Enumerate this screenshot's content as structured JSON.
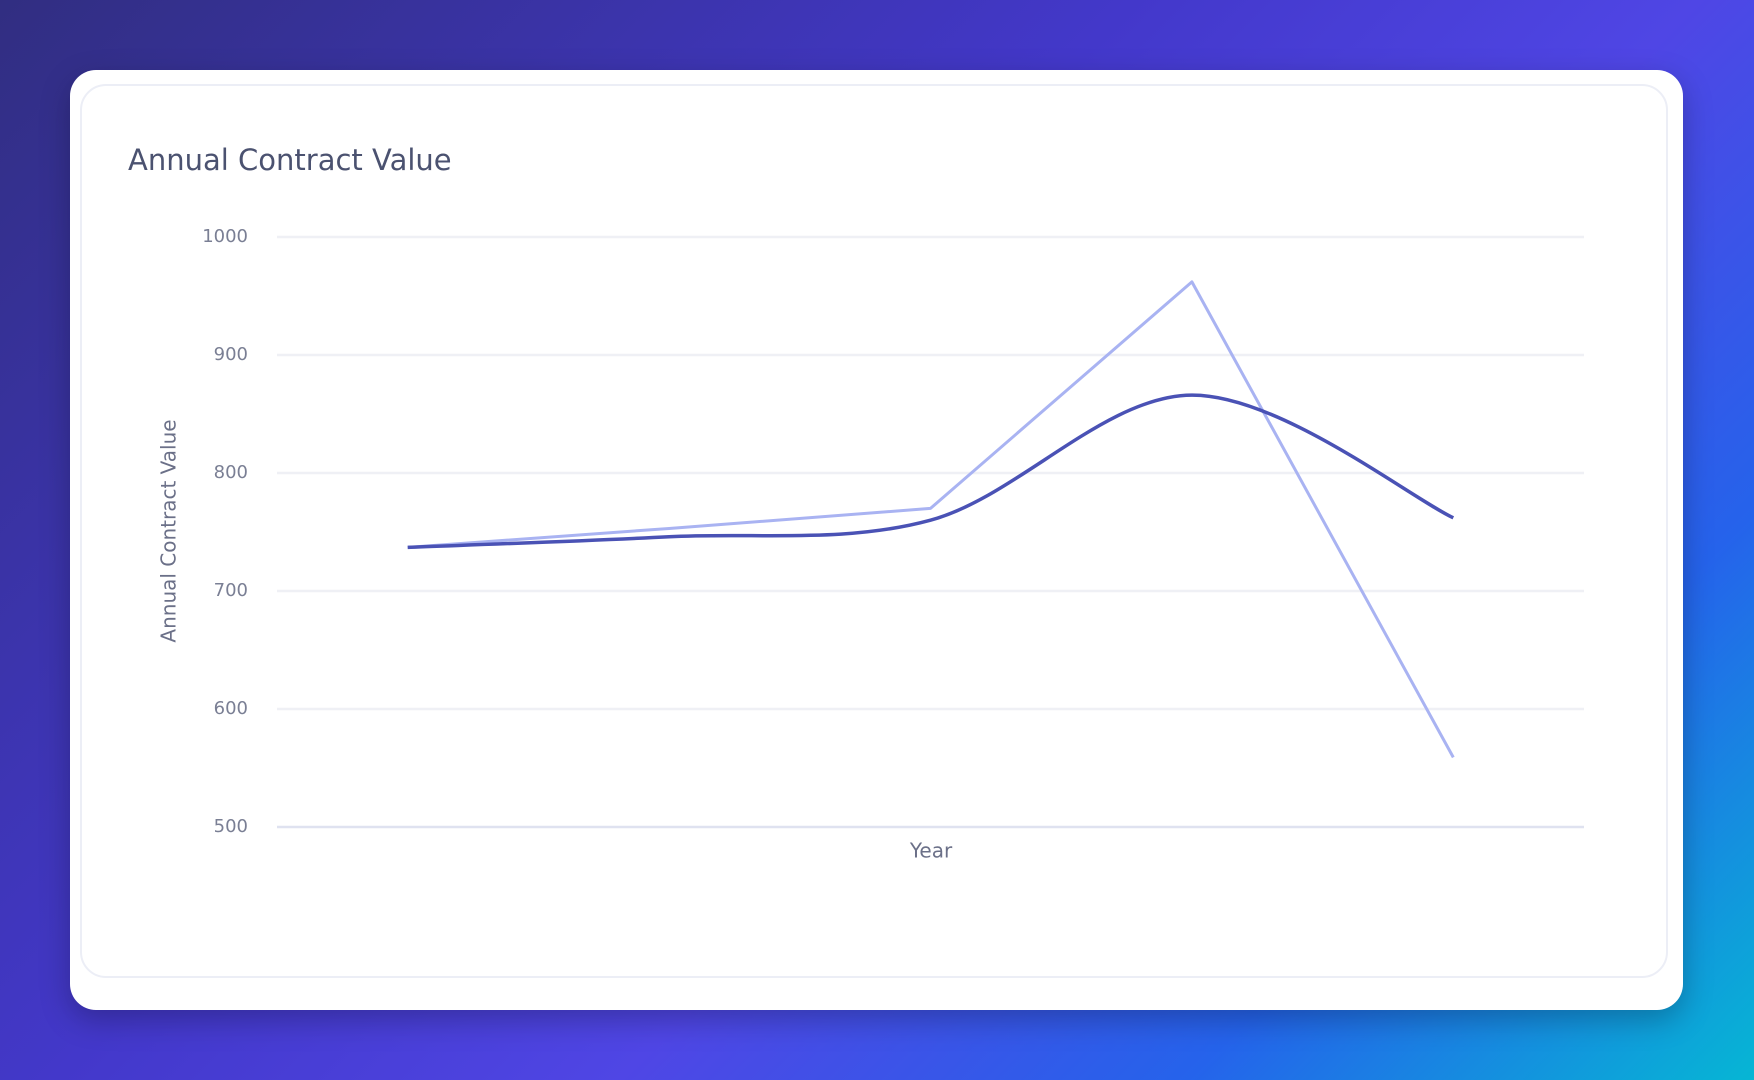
{
  "chart_data": {
    "type": "line",
    "title": "Annual Contract Value",
    "x_label": "Year",
    "y_label": "Annual Contract Value",
    "categories": [
      null,
      null,
      null,
      null,
      null
    ],
    "series": [
      {
        "color": "#a9b3f2",
        "smooth": false,
        "values": [
          737,
          753,
          770,
          962,
          559
        ]
      },
      {
        "color": "#4a52b5",
        "smooth": true,
        "values": [
          737,
          746,
          760,
          866,
          762
        ]
      }
    ],
    "ylim": [
      500,
      1000
    ],
    "yticks": [
      500,
      600,
      700,
      800,
      900,
      1000
    ],
    "grid": true
  }
}
